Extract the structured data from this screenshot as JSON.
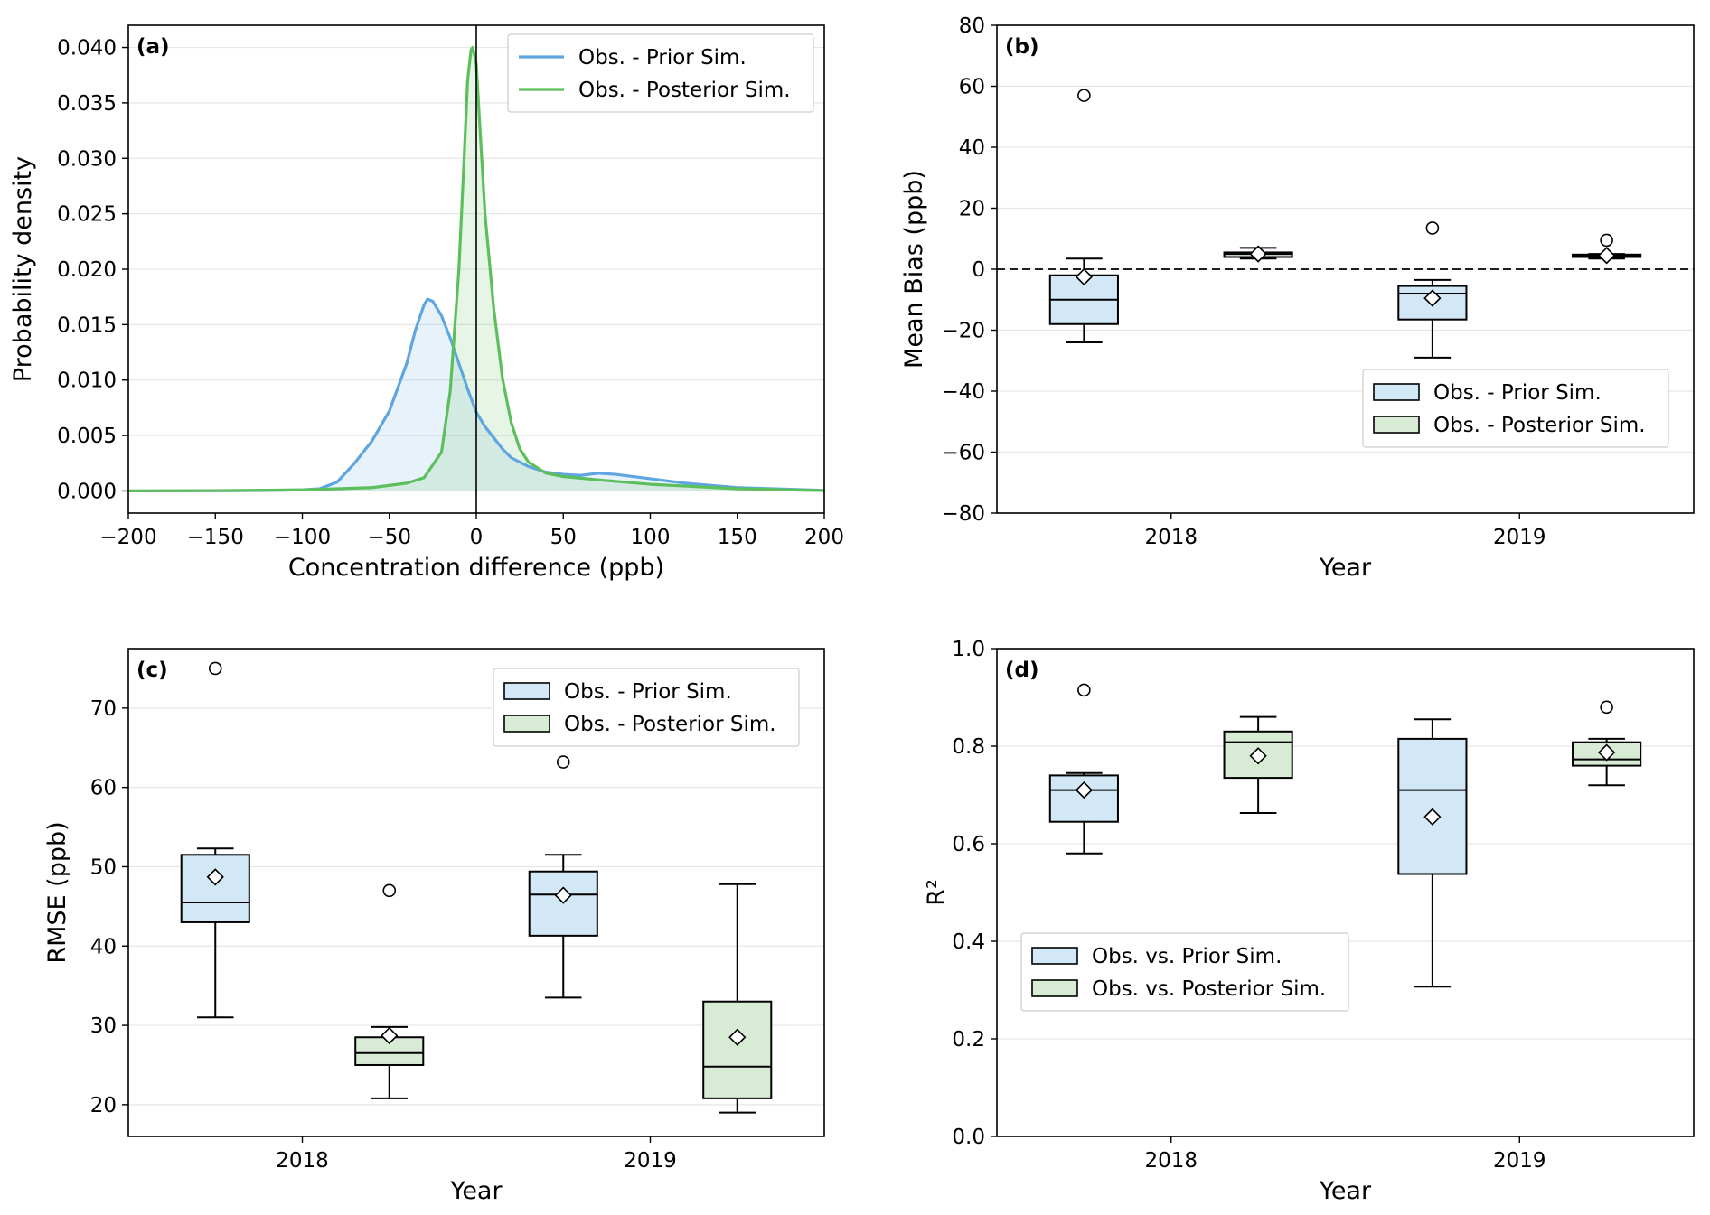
{
  "colors": {
    "prior_line": "#5fa6e0",
    "posterior_line": "#5cbf5c",
    "prior_fill": "#d3e8f7",
    "posterior_fill": "#d8ecd5",
    "grid": "#e6e6e6"
  },
  "chart_data": [
    {
      "panel": "(a)",
      "type": "line",
      "xlabel": "Concentration difference (ppb)",
      "ylabel": "Probability density",
      "xlim": [
        -200,
        200
      ],
      "ylim": [
        -0.002,
        0.042
      ],
      "xticks": [
        -200,
        -150,
        -100,
        -50,
        0,
        50,
        100,
        150,
        200
      ],
      "xtick_labels": [
        "−200",
        "−150",
        "−100",
        "−50",
        "0",
        "50",
        "100",
        "150",
        "200"
      ],
      "yticks": [
        0.0,
        0.005,
        0.01,
        0.015,
        0.02,
        0.025,
        0.03,
        0.035,
        0.04
      ],
      "ytick_labels": [
        "0.000",
        "0.005",
        "0.010",
        "0.015",
        "0.020",
        "0.025",
        "0.030",
        "0.035",
        "0.040"
      ],
      "grid": "horizontal",
      "reference_line_x": 0,
      "legend_position": "top-right",
      "series": [
        {
          "name": "Obs. - Prior Sim.",
          "color_key": "prior",
          "x": [
            -200,
            -150,
            -120,
            -100,
            -90,
            -80,
            -70,
            -60,
            -50,
            -40,
            -35,
            -30,
            -28,
            -25,
            -20,
            -15,
            -10,
            -5,
            0,
            5,
            10,
            15,
            20,
            30,
            40,
            50,
            60,
            70,
            80,
            100,
            120,
            150,
            200
          ],
          "y": [
            0.0,
            2e-05,
            5e-05,
            0.0001,
            0.0002,
            0.0008,
            0.0025,
            0.0045,
            0.0072,
            0.0115,
            0.0145,
            0.0168,
            0.0173,
            0.0171,
            0.0158,
            0.0138,
            0.0115,
            0.0092,
            0.0071,
            0.0058,
            0.0048,
            0.0038,
            0.003,
            0.0022,
            0.0017,
            0.0015,
            0.0014,
            0.0016,
            0.0015,
            0.0011,
            0.0007,
            0.0003,
            5e-05
          ]
        },
        {
          "name": "Obs. - Posterior Sim.",
          "color_key": "posterior",
          "x": [
            -200,
            -150,
            -100,
            -60,
            -40,
            -30,
            -20,
            -15,
            -10,
            -7,
            -5,
            -3,
            -2,
            0,
            2,
            5,
            10,
            15,
            20,
            25,
            30,
            40,
            50,
            70,
            100,
            150,
            200
          ],
          "y": [
            0.0,
            3e-05,
            0.0001,
            0.0003,
            0.0007,
            0.0012,
            0.0035,
            0.009,
            0.02,
            0.03,
            0.037,
            0.0398,
            0.04,
            0.0385,
            0.033,
            0.025,
            0.0165,
            0.0102,
            0.0062,
            0.0038,
            0.0026,
            0.0016,
            0.0013,
            0.001,
            0.0006,
            0.0002,
            3e-05
          ]
        }
      ]
    },
    {
      "panel": "(b)",
      "type": "box",
      "xlabel": "Year",
      "ylabel": "Mean Bias (ppb)",
      "categories": [
        "2018",
        "2019"
      ],
      "ylim": [
        -80,
        80
      ],
      "yticks": [
        -80,
        -60,
        -40,
        -20,
        0,
        20,
        40,
        60,
        80
      ],
      "ytick_labels": [
        "−80",
        "−60",
        "−40",
        "−20",
        "0",
        "20",
        "40",
        "60",
        "80"
      ],
      "grid": "horizontal",
      "reference_line_y": 0,
      "legend_position": "lower-right",
      "series": [
        {
          "name": "Obs. - Prior Sim.",
          "color_key": "prior",
          "boxes": [
            {
              "whislo": -24,
              "q1": -18,
              "med": -10,
              "q3": -2,
              "whishi": 3.5,
              "mean": -2.5,
              "fliers": [
                57
              ]
            },
            {
              "whislo": -29,
              "q1": -16.5,
              "med": -8,
              "q3": -5.5,
              "whishi": -3.5,
              "mean": -9.5,
              "fliers": [
                13.5
              ]
            }
          ]
        },
        {
          "name": "Obs. - Posterior Sim.",
          "color_key": "posterior",
          "boxes": [
            {
              "whislo": 3.5,
              "q1": 4,
              "med": 5,
              "q3": 5.5,
              "whishi": 7,
              "mean": 5,
              "fliers": []
            },
            {
              "whislo": 3.5,
              "q1": 4,
              "med": 4.3,
              "q3": 4.8,
              "whishi": 5,
              "mean": 4.5,
              "fliers": [
                9.5
              ]
            }
          ]
        }
      ]
    },
    {
      "panel": "(c)",
      "type": "box",
      "xlabel": "Year",
      "ylabel": "RMSE (ppb)",
      "categories": [
        "2018",
        "2019"
      ],
      "ylim": [
        16,
        77.5
      ],
      "yticks": [
        20,
        30,
        40,
        50,
        60,
        70
      ],
      "ytick_labels": [
        "20",
        "30",
        "40",
        "50",
        "60",
        "70"
      ],
      "grid": "horizontal",
      "legend_position": "top-right",
      "series": [
        {
          "name": "Obs. - Prior Sim.",
          "color_key": "prior",
          "boxes": [
            {
              "whislo": 31,
              "q1": 43,
              "med": 45.5,
              "q3": 51.5,
              "whishi": 52.3,
              "mean": 48.7,
              "fliers": [
                75
              ]
            },
            {
              "whislo": 33.5,
              "q1": 41.3,
              "med": 46.5,
              "q3": 49.4,
              "whishi": 51.5,
              "mean": 46.4,
              "fliers": [
                63.2
              ]
            }
          ]
        },
        {
          "name": "Obs. - Posterior Sim.",
          "color_key": "posterior",
          "boxes": [
            {
              "whislo": 20.8,
              "q1": 25,
              "med": 26.5,
              "q3": 28.5,
              "whishi": 29.8,
              "mean": 28.7,
              "fliers": [
                47
              ]
            },
            {
              "whislo": 19,
              "q1": 20.8,
              "med": 24.8,
              "q3": 33,
              "whishi": 47.8,
              "mean": 28.5,
              "fliers": []
            }
          ]
        }
      ]
    },
    {
      "panel": "(d)",
      "type": "box",
      "xlabel": "Year",
      "ylabel": "R²",
      "categories": [
        "2018",
        "2019"
      ],
      "ylim": [
        0.0,
        1.0
      ],
      "yticks": [
        0.0,
        0.2,
        0.4,
        0.6,
        0.8,
        1.0
      ],
      "ytick_labels": [
        "0.0",
        "0.2",
        "0.4",
        "0.6",
        "0.8",
        "1.0"
      ],
      "grid": "horizontal",
      "legend_position": "lower-left",
      "series": [
        {
          "name": "Obs. vs. Prior Sim.",
          "color_key": "prior",
          "boxes": [
            {
              "whislo": 0.58,
              "q1": 0.645,
              "med": 0.71,
              "q3": 0.74,
              "whishi": 0.745,
              "mean": 0.71,
              "fliers": [
                0.915
              ]
            },
            {
              "whislo": 0.307,
              "q1": 0.538,
              "med": 0.71,
              "q3": 0.815,
              "whishi": 0.855,
              "mean": 0.655,
              "fliers": []
            }
          ]
        },
        {
          "name": "Obs. vs. Posterior Sim.",
          "color_key": "posterior",
          "boxes": [
            {
              "whislo": 0.663,
              "q1": 0.735,
              "med": 0.808,
              "q3": 0.83,
              "whishi": 0.86,
              "mean": 0.78,
              "fliers": []
            },
            {
              "whislo": 0.72,
              "q1": 0.76,
              "med": 0.773,
              "q3": 0.808,
              "whishi": 0.815,
              "mean": 0.787,
              "fliers": [
                0.88
              ]
            }
          ]
        }
      ]
    }
  ]
}
